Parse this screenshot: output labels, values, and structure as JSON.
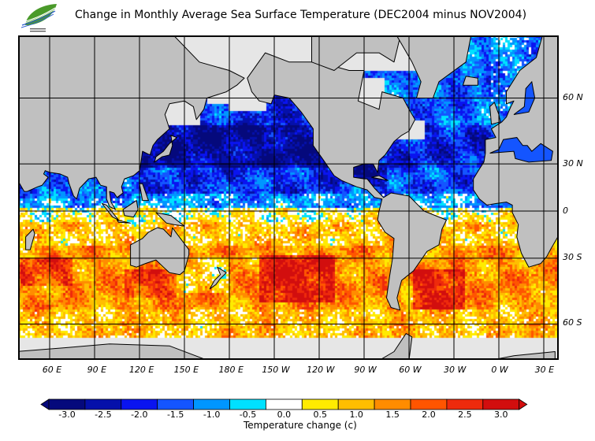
{
  "title": "Change in Monthly Average Sea Surface Temperature (DEC2004 minus NOV2004)",
  "logo": {
    "text": "SAUA RAIS"
  },
  "map": {
    "lat_labels": [
      "60 N",
      "30 N",
      "0",
      "30 S",
      "60 S"
    ],
    "lon_labels": [
      "60 E",
      "90 E",
      "120 E",
      "150 E",
      "180 E",
      "150 W",
      "120 W",
      "90 W",
      "60 W",
      "30 W",
      "0 W",
      "30 E"
    ],
    "land_color": "#c0c0c0",
    "nodata_color": "#e6e6e6"
  },
  "colorbar": {
    "label": "Temperature change  (c)",
    "ticks": [
      "-3.0",
      "-2.5",
      "-2.0",
      "-1.5",
      "-1.0",
      "-0.5",
      "0.0",
      "0.5",
      "1.0",
      "1.5",
      "2.0",
      "2.5",
      "3.0"
    ],
    "values": [
      -3.0,
      -2.5,
      -2.0,
      -1.5,
      -1.0,
      -0.5,
      0.0,
      0.5,
      1.0,
      1.5,
      2.0,
      2.5,
      3.0
    ],
    "colors": [
      "#05097c",
      "#0510aa",
      "#0a14f0",
      "#1455ff",
      "#0096ff",
      "#00e1ff",
      "#ffffff",
      "#ffeb00",
      "#ffbe00",
      "#ff8c00",
      "#ff5500",
      "#ee2a0c",
      "#d20e0e"
    ]
  }
}
